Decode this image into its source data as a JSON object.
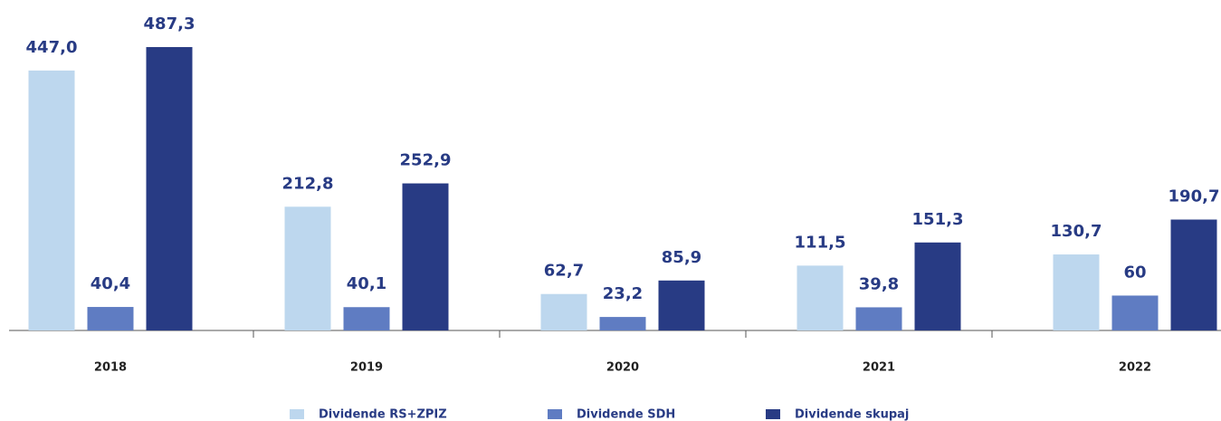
{
  "chart_data": {
    "type": "bar",
    "categories": [
      "2018",
      "2019",
      "2020",
      "2021",
      "2022"
    ],
    "series": [
      {
        "name": "Dividende RS+ZPIZ",
        "color": "#bdd7ee",
        "values": [
          447.0,
          212.8,
          62.7,
          111.5,
          130.7
        ],
        "value_labels": [
          "447,0",
          "212,8",
          "62,7",
          "111,5",
          "130,7"
        ]
      },
      {
        "name": "Dividende SDH",
        "color": "#5f7cc2",
        "values": [
          40.4,
          40.1,
          23.2,
          39.8,
          60
        ],
        "value_labels": [
          "40,4",
          "40,1",
          "23,2",
          "39,8",
          "60"
        ]
      },
      {
        "name": "Dividende skupaj",
        "color": "#283b84",
        "values": [
          487.3,
          252.9,
          85.9,
          151.3,
          190.7
        ],
        "value_labels": [
          "487,3",
          "252,9",
          "85,9",
          "151,3",
          "190,7"
        ]
      }
    ],
    "legend": "bottom"
  }
}
